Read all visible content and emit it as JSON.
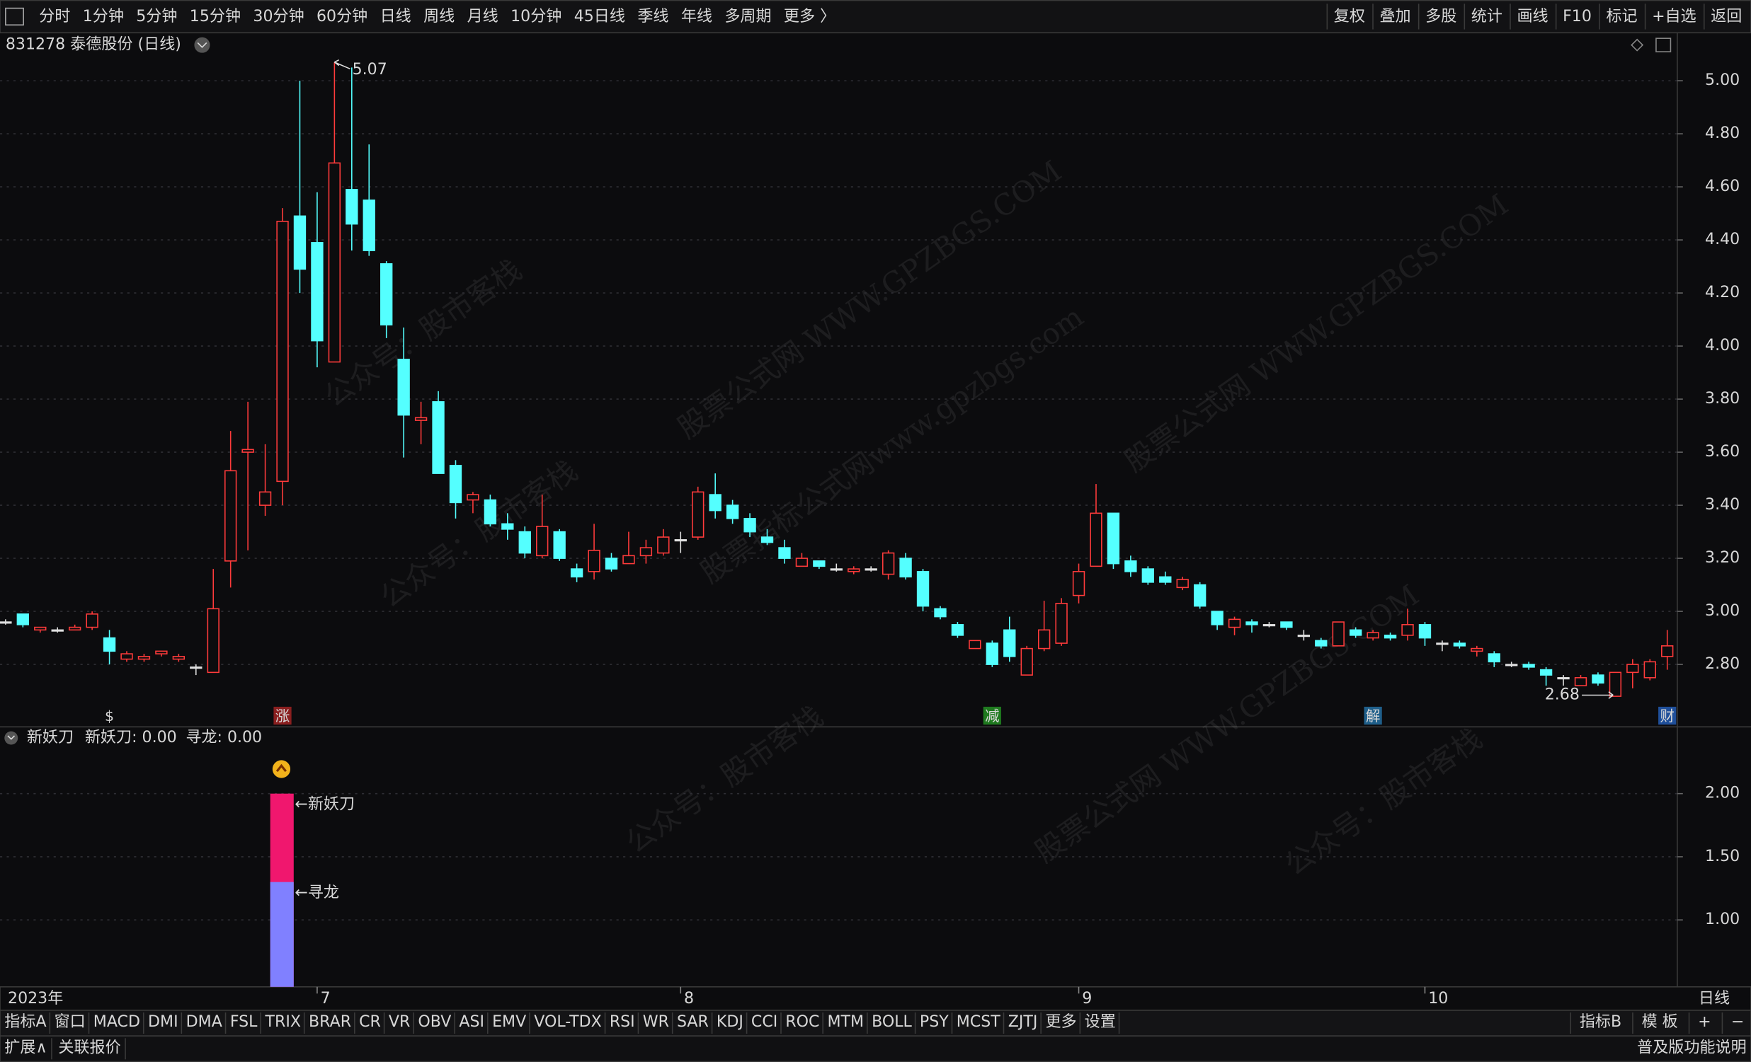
{
  "toolbar": {
    "left": [
      "分时",
      "1分钟",
      "5分钟",
      "15分钟",
      "30分钟",
      "60分钟",
      "日线",
      "周线",
      "月线",
      "10分钟",
      "45日线",
      "季线",
      "年线",
      "多周期",
      "更多 〉"
    ],
    "active": "日线",
    "right": [
      "复权",
      "叠加",
      "多股",
      "统计",
      "画线",
      "F10",
      "标记",
      "+自选",
      "返回"
    ]
  },
  "header": {
    "title": "831278 泰德股份 (日线)"
  },
  "watermarks": [
    "公众号：股市客栈",
    "股票公式网 WWW.GPZBGS.COM",
    "股票指标公式网www.gpzbgs.com"
  ],
  "chart": {
    "type": "candlestick",
    "axis_label": "日线",
    "categories": [
      "2023年",
      null,
      null,
      null,
      null,
      null,
      null,
      null,
      null,
      null,
      null,
      null,
      null,
      null,
      null,
      null,
      null,
      null,
      "7",
      null,
      null,
      null,
      null,
      null,
      null,
      null,
      null,
      null,
      null,
      null,
      null,
      null,
      null,
      null,
      null,
      null,
      null,
      null,
      null,
      "8",
      null,
      null,
      null,
      null,
      null,
      null,
      null,
      null,
      null,
      null,
      null,
      null,
      null,
      null,
      null,
      null,
      null,
      null,
      null,
      null,
      null,
      null,
      "9",
      null,
      null,
      null,
      null,
      null,
      null,
      null,
      null,
      null,
      null,
      null,
      null,
      null,
      null,
      null,
      null,
      null,
      null,
      null,
      "10",
      null,
      null,
      null,
      null,
      null,
      null,
      null,
      null,
      null,
      null,
      null,
      null,
      null,
      null
    ],
    "candles": [
      [
        2.96,
        2.97,
        2.95,
        2.96
      ],
      [
        2.99,
        2.99,
        2.94,
        2.95
      ],
      [
        2.93,
        2.94,
        2.92,
        2.94
      ],
      [
        2.93,
        2.94,
        2.92,
        2.93
      ],
      [
        2.93,
        2.95,
        2.93,
        2.94
      ],
      [
        2.94,
        3.0,
        2.93,
        2.99
      ],
      [
        2.9,
        2.93,
        2.8,
        2.85
      ],
      [
        2.82,
        2.85,
        2.81,
        2.84
      ],
      [
        2.82,
        2.84,
        2.81,
        2.83
      ],
      [
        2.84,
        2.85,
        2.83,
        2.85
      ],
      [
        2.82,
        2.84,
        2.81,
        2.83
      ],
      [
        2.79,
        2.8,
        2.76,
        2.79
      ],
      [
        2.77,
        3.16,
        2.77,
        3.01
      ],
      [
        3.19,
        3.68,
        3.09,
        3.53
      ],
      [
        3.6,
        3.79,
        3.23,
        3.61
      ],
      [
        3.4,
        3.63,
        3.36,
        3.45
      ],
      [
        3.49,
        4.52,
        3.4,
        4.47
      ],
      [
        4.49,
        5.0,
        4.2,
        4.29
      ],
      [
        4.39,
        4.58,
        3.92,
        4.02
      ],
      [
        3.94,
        5.07,
        3.94,
        4.69
      ],
      [
        4.59,
        5.05,
        4.36,
        4.46
      ],
      [
        4.55,
        4.76,
        4.34,
        4.36
      ],
      [
        4.31,
        4.32,
        4.03,
        4.08
      ],
      [
        3.95,
        4.07,
        3.58,
        3.74
      ],
      [
        3.72,
        3.79,
        3.63,
        3.73
      ],
      [
        3.79,
        3.83,
        3.52,
        3.52
      ],
      [
        3.55,
        3.57,
        3.35,
        3.41
      ],
      [
        3.42,
        3.45,
        3.37,
        3.44
      ],
      [
        3.42,
        3.44,
        3.32,
        3.33
      ],
      [
        3.33,
        3.37,
        3.27,
        3.31
      ],
      [
        3.3,
        3.32,
        3.2,
        3.22
      ],
      [
        3.21,
        3.44,
        3.2,
        3.32
      ],
      [
        3.3,
        3.31,
        3.19,
        3.2
      ],
      [
        3.16,
        3.18,
        3.11,
        3.13
      ],
      [
        3.15,
        3.33,
        3.12,
        3.23
      ],
      [
        3.2,
        3.22,
        3.15,
        3.16
      ],
      [
        3.18,
        3.3,
        3.18,
        3.21
      ],
      [
        3.21,
        3.27,
        3.18,
        3.24
      ],
      [
        3.22,
        3.31,
        3.21,
        3.28
      ],
      [
        3.27,
        3.3,
        3.22,
        3.27
      ],
      [
        3.28,
        3.47,
        3.27,
        3.45
      ],
      [
        3.44,
        3.52,
        3.35,
        3.38
      ],
      [
        3.4,
        3.42,
        3.33,
        3.35
      ],
      [
        3.35,
        3.37,
        3.28,
        3.3
      ],
      [
        3.28,
        3.31,
        3.25,
        3.26
      ],
      [
        3.24,
        3.27,
        3.18,
        3.2
      ],
      [
        3.17,
        3.22,
        3.17,
        3.2
      ],
      [
        3.19,
        3.19,
        3.16,
        3.17
      ],
      [
        3.16,
        3.18,
        3.15,
        3.16
      ],
      [
        3.15,
        3.17,
        3.14,
        3.16
      ],
      [
        3.16,
        3.17,
        3.15,
        3.16
      ],
      [
        3.14,
        3.23,
        3.12,
        3.22
      ],
      [
        3.2,
        3.22,
        3.12,
        3.13
      ],
      [
        3.15,
        3.16,
        3.0,
        3.02
      ],
      [
        3.01,
        3.02,
        2.97,
        2.98
      ],
      [
        2.95,
        2.96,
        2.9,
        2.91
      ],
      [
        2.86,
        2.89,
        2.86,
        2.89
      ],
      [
        2.88,
        2.89,
        2.79,
        2.8
      ],
      [
        2.93,
        2.98,
        2.81,
        2.83
      ],
      [
        2.76,
        2.87,
        2.76,
        2.86
      ],
      [
        2.86,
        3.04,
        2.85,
        2.93
      ],
      [
        2.88,
        3.05,
        2.87,
        3.03
      ],
      [
        3.06,
        3.18,
        3.03,
        3.15
      ],
      [
        3.17,
        3.48,
        3.17,
        3.37
      ],
      [
        3.37,
        3.37,
        3.16,
        3.18
      ],
      [
        3.19,
        3.21,
        3.13,
        3.15
      ],
      [
        3.16,
        3.17,
        3.1,
        3.11
      ],
      [
        3.13,
        3.15,
        3.1,
        3.11
      ],
      [
        3.09,
        3.13,
        3.08,
        3.12
      ],
      [
        3.1,
        3.11,
        3.01,
        3.02
      ],
      [
        3.0,
        3.0,
        2.93,
        2.95
      ],
      [
        2.94,
        2.98,
        2.91,
        2.97
      ],
      [
        2.96,
        2.97,
        2.92,
        2.95
      ],
      [
        2.95,
        2.96,
        2.94,
        2.95
      ],
      [
        2.96,
        2.96,
        2.93,
        2.94
      ],
      [
        2.91,
        2.93,
        2.89,
        2.91
      ],
      [
        2.89,
        2.9,
        2.86,
        2.87
      ],
      [
        2.87,
        2.96,
        2.87,
        2.96
      ],
      [
        2.93,
        2.94,
        2.9,
        2.91
      ],
      [
        2.9,
        2.93,
        2.89,
        2.92
      ],
      [
        2.91,
        2.92,
        2.89,
        2.9
      ],
      [
        2.91,
        3.01,
        2.89,
        2.95
      ],
      [
        2.95,
        2.96,
        2.87,
        2.9
      ],
      [
        2.88,
        2.89,
        2.85,
        2.88
      ],
      [
        2.88,
        2.89,
        2.86,
        2.87
      ],
      [
        2.85,
        2.87,
        2.83,
        2.86
      ],
      [
        2.84,
        2.85,
        2.79,
        2.81
      ],
      [
        2.8,
        2.81,
        2.79,
        2.8
      ],
      [
        2.8,
        2.81,
        2.78,
        2.79
      ],
      [
        2.78,
        2.79,
        2.72,
        2.76
      ],
      [
        2.75,
        2.76,
        2.72,
        2.75
      ],
      [
        2.72,
        2.76,
        2.72,
        2.75
      ],
      [
        2.76,
        2.77,
        2.72,
        2.73
      ],
      [
        2.68,
        2.77,
        2.68,
        2.77
      ],
      [
        2.77,
        2.82,
        2.71,
        2.8
      ],
      [
        2.75,
        2.82,
        2.74,
        2.81
      ],
      [
        2.83,
        2.93,
        2.78,
        2.87
      ]
    ],
    "events": [
      null,
      null,
      null,
      null,
      null,
      null,
      {
        "label": "$",
        "color": "#ff3030"
      },
      null,
      null,
      null,
      null,
      null,
      null,
      null,
      null,
      null,
      {
        "label": "涨",
        "color": "#8a1f1f"
      },
      null,
      null,
      null,
      null,
      null,
      null,
      null,
      null,
      null,
      null,
      null,
      null,
      null,
      null,
      null,
      null,
      null,
      null,
      null,
      null,
      null,
      null,
      null,
      null,
      null,
      null,
      null,
      null,
      null,
      null,
      null,
      null,
      null,
      null,
      null,
      null,
      null,
      null,
      null,
      null,
      {
        "label": "减",
        "color": "#1f7a1f"
      },
      null,
      null,
      null,
      null,
      null,
      null,
      null,
      null,
      null,
      null,
      null,
      null,
      null,
      null,
      null,
      null,
      null,
      null,
      null,
      null,
      null,
      {
        "label": "解",
        "color": "#1f5f8a"
      },
      null,
      null,
      null,
      null,
      null,
      null,
      null,
      null,
      null,
      null,
      null,
      null,
      null,
      null,
      null,
      null,
      {
        "label": "财",
        "color": "#1f4f9a"
      }
    ],
    "high_label": "5.07",
    "low_label": "2.68",
    "ylim": [
      2.569,
      5.0925
    ],
    "yticks": [
      {
        "value": 5,
        "label": "5.00"
      },
      {
        "value": 4.8,
        "label": "4.80"
      },
      {
        "value": 4.6,
        "label": "4.60"
      },
      {
        "value": 4.4,
        "label": "4.40"
      },
      {
        "value": 4.2,
        "label": "4.20"
      },
      {
        "value": 4,
        "label": "4.00"
      },
      {
        "value": 3.8,
        "label": "3.80"
      },
      {
        "value": 3.6,
        "label": "3.60"
      },
      {
        "value": 3.4,
        "label": "3.40"
      },
      {
        "value": 3.2,
        "label": "3.20"
      },
      {
        "value": 3,
        "label": "3.00"
      },
      {
        "value": 2.8,
        "label": "2.80"
      }
    ],
    "grid": true,
    "up_color": "#ff3b3b",
    "down_color": "#54ffff",
    "flat_color": "#e0e0e0"
  },
  "indicator": {
    "type": "bar",
    "title": "新妖刀",
    "legend": [
      {
        "text": "新妖刀: 0.00",
        "color": "#ff3b3b"
      },
      {
        "text": "寻龙: 0.00",
        "color": "#ff40ff"
      }
    ],
    "ylim": [
      0.47,
      2.52
    ],
    "yticks": [
      {
        "value": 2,
        "label": "2.00"
      },
      {
        "value": 1.5,
        "label": "1.50"
      },
      {
        "value": 1,
        "label": "1.00"
      }
    ],
    "series": [
      {
        "name": "←新妖刀",
        "color": "#f0176e",
        "values": [
          null,
          null,
          null,
          null,
          null,
          null,
          null,
          null,
          null,
          null,
          null,
          null,
          null,
          null,
          null,
          null,
          2.0,
          null,
          null,
          null,
          null,
          null,
          null,
          null,
          null,
          null,
          null,
          null,
          null,
          null,
          null,
          null,
          null,
          null,
          null,
          null,
          null,
          null,
          null,
          null,
          null,
          null,
          null,
          null,
          null,
          null,
          null,
          null,
          null,
          null,
          null,
          null,
          null,
          null,
          null,
          null,
          null,
          null,
          null,
          null,
          null,
          null,
          null,
          null,
          null,
          null,
          null,
          null,
          null,
          null,
          null,
          null,
          null,
          null,
          null,
          null,
          null,
          null,
          null,
          null,
          null,
          null,
          null,
          null,
          null,
          null,
          null,
          null,
          null,
          null,
          null,
          null,
          null,
          null,
          null,
          null,
          null
        ]
      },
      {
        "name": "←寻龙",
        "color": "#8080ff",
        "values": [
          null,
          null,
          null,
          null,
          null,
          null,
          null,
          null,
          null,
          null,
          null,
          null,
          null,
          null,
          null,
          null,
          1.3,
          null,
          null,
          null,
          null,
          null,
          null,
          null,
          null,
          null,
          null,
          null,
          null,
          null,
          null,
          null,
          null,
          null,
          null,
          null,
          null,
          null,
          null,
          null,
          null,
          null,
          null,
          null,
          null,
          null,
          null,
          null,
          null,
          null,
          null,
          null,
          null,
          null,
          null,
          null,
          null,
          null,
          null,
          null,
          null,
          null,
          null,
          null,
          null,
          null,
          null,
          null,
          null,
          null,
          null,
          null,
          null,
          null,
          null,
          null,
          null,
          null,
          null,
          null,
          null,
          null,
          null,
          null,
          null,
          null,
          null,
          null,
          null,
          null,
          null,
          null,
          null,
          null,
          null,
          null,
          null
        ]
      }
    ]
  },
  "tabs": {
    "left": [
      "指标A",
      "窗口",
      "MACD",
      "DMI",
      "DMA",
      "FSL",
      "TRIX",
      "BRAR",
      "CR",
      "VR",
      "OBV",
      "ASI",
      "EMV",
      "VOL-TDX",
      "RSI",
      "WR",
      "SAR",
      "KDJ",
      "CCI",
      "ROC",
      "MTM",
      "BOLL",
      "PSY",
      "MCST",
      "ZJTJ",
      "更多",
      "设置"
    ],
    "active": "设置",
    "right": [
      "指标B",
      "模 板",
      "+",
      "−"
    ]
  },
  "status": {
    "left": [
      "扩展∧",
      "关联报价"
    ],
    "right": "普及版功能说明"
  }
}
